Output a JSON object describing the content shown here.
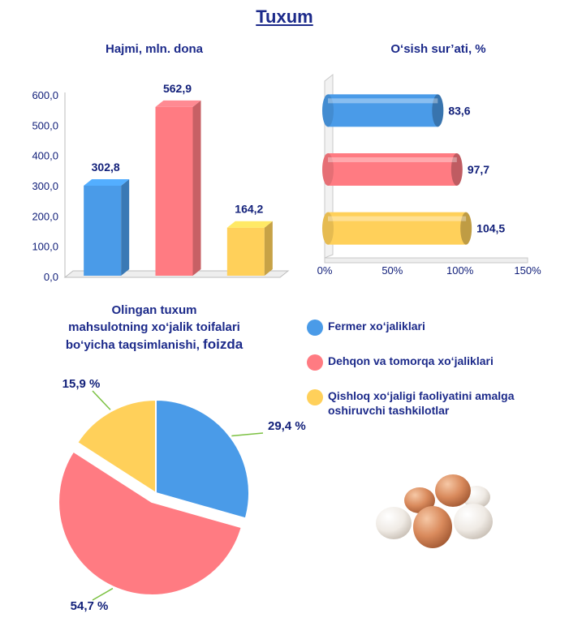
{
  "page_title": "Tuxum",
  "colors": {
    "blue": "#4a9be8",
    "red": "#ff7b82",
    "yellow": "#ffd05a",
    "title": "#1c2a8a",
    "label": "#12207a"
  },
  "legend": [
    {
      "label": "Fermer xo‘jaliklari",
      "color": "#4a9be8"
    },
    {
      "label": "Dehqon va tomorqa xo‘jaliklari",
      "color": "#ff7b82"
    },
    {
      "label": "Qishloq xo‘jaligi faoliyatini amalga oshiruvchi tashkilotlar",
      "color": "#ffd05a"
    }
  ],
  "chart_data": [
    {
      "type": "bar",
      "title": "Hajmi, mln. dona",
      "categories": [
        "Fermer xo‘jaliklari",
        "Dehqon va tomorqa xo‘jaliklari",
        "Qishloq xo‘jaligi faoliyatini amalga oshiruvchi tashkilotlar"
      ],
      "values": [
        302.8,
        562.9,
        164.2
      ],
      "value_labels": [
        "302,8",
        "562,9",
        "164,2"
      ],
      "colors": [
        "#4a9be8",
        "#ff7b82",
        "#ffd05a"
      ],
      "ylim": [
        0,
        600
      ],
      "yticks": [
        "0,0",
        "100,0",
        "200,0",
        "300,0",
        "400,0",
        "500,0",
        "600,0"
      ],
      "xlabel": "",
      "ylabel": ""
    },
    {
      "type": "bar",
      "orientation": "horizontal",
      "title": "O‘sish sur’ati, %",
      "categories": [
        "Fermer xo‘jaliklari",
        "Dehqon va tomorqa xo‘jaliklari",
        "Qishloq xo‘jaligi faoliyatini amalga oshiruvchi tashkilotlar"
      ],
      "values": [
        83.6,
        97.7,
        104.5
      ],
      "value_labels": [
        "83,6",
        "97,7",
        "104,5"
      ],
      "colors": [
        "#4a9be8",
        "#ff7b82",
        "#ffd05a"
      ],
      "xlim": [
        0,
        150
      ],
      "xticks": [
        "0%",
        "50%",
        "100%",
        "150%"
      ]
    },
    {
      "type": "pie",
      "title_lines": [
        "Olingan tuxum",
        "mahsulotning xo‘jalik toifalari"
      ],
      "title_last": "bo‘yicha taqsimlanishi, ",
      "title_emph": "foizda",
      "categories": [
        "Fermer xo‘jaliklari",
        "Dehqon va tomorqa xo‘jaliklari",
        "Qishloq xo‘jaligi faoliyatini amalga oshiruvchi tashkilotlar"
      ],
      "values": [
        29.4,
        54.7,
        15.9
      ],
      "value_labels": [
        "29,4 %",
        "54,7 %",
        "15,9 %"
      ],
      "colors": [
        "#4a9be8",
        "#ff7b82",
        "#ffd05a"
      ]
    }
  ]
}
